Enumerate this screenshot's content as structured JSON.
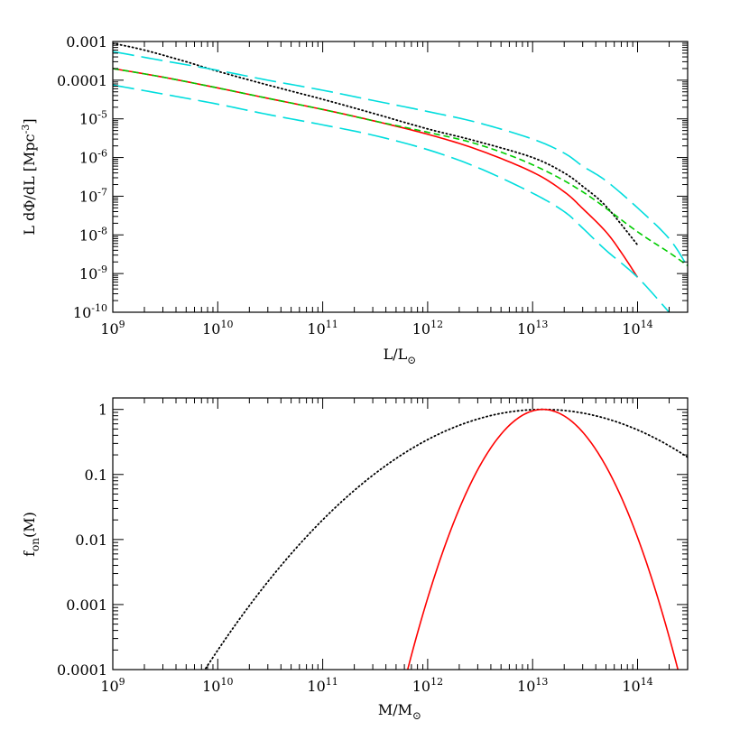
{
  "chart_data": [
    {
      "type": "line",
      "xlabel": "L/L⊙",
      "ylabel": "L dΦ/dL [Mpc⁻³]",
      "x_scale": "log",
      "y_scale": "log",
      "xlim": [
        1000000000.0,
        300000000000000.0
      ],
      "ylim": [
        1e-10,
        0.001
      ],
      "x_ticks": [
        {
          "value": 1000000000.0,
          "base": "10",
          "exp": "9"
        },
        {
          "value": 10000000000.0,
          "base": "10",
          "exp": "10"
        },
        {
          "value": 100000000000.0,
          "base": "10",
          "exp": "11"
        },
        {
          "value": 1000000000000.0,
          "base": "10",
          "exp": "12"
        },
        {
          "value": 10000000000000.0,
          "base": "10",
          "exp": "13"
        },
        {
          "value": 100000000000000.0,
          "base": "10",
          "exp": "14"
        }
      ],
      "y_ticks": [
        {
          "value": 0.001,
          "text": "0.001",
          "base": "",
          "exp": ""
        },
        {
          "value": 0.0001,
          "text": "0.0001",
          "base": "",
          "exp": ""
        },
        {
          "value": 1e-05,
          "text": "",
          "base": "10",
          "exp": "-5"
        },
        {
          "value": 1e-06,
          "text": "",
          "base": "10",
          "exp": "-6"
        },
        {
          "value": 1e-07,
          "text": "",
          "base": "10",
          "exp": "-7"
        },
        {
          "value": 1e-08,
          "text": "",
          "base": "10",
          "exp": "-8"
        },
        {
          "value": 1e-09,
          "text": "",
          "base": "10",
          "exp": "-9"
        },
        {
          "value": 1e-10,
          "text": "",
          "base": "10",
          "exp": "-10"
        }
      ],
      "series": [
        {
          "style": "dotted",
          "color": "#000000",
          "x": [
            1000000000.0,
            2000000000.0,
            5000000000.0,
            10000000000.0,
            30000000000.0,
            100000000000.0,
            300000000000.0,
            1000000000000.0,
            3000000000000.0,
            10000000000000.0,
            20000000000000.0,
            30000000000000.0,
            50000000000000.0,
            100000000000000.0
          ],
          "y": [
            0.0009,
            0.0006,
            0.0003,
            0.00017,
            7.5e-05,
            3.2e-05,
            1.4e-05,
            5.5e-06,
            2.6e-06,
            1e-06,
            4e-07,
            1.8e-07,
            5.5e-08,
            5.5e-09
          ]
        },
        {
          "style": "solid",
          "color": "#ff0000",
          "x": [
            1000000000.0,
            3000000000.0,
            10000000000.0,
            30000000000.0,
            100000000000.0,
            300000000000.0,
            1000000000000.0,
            3000000000000.0,
            10000000000000.0,
            20000000000000.0,
            30000000000000.0,
            50000000000000.0,
            70000000000000.0,
            100000000000000.0
          ],
          "y": [
            0.0002,
            0.00012,
            6.3e-05,
            3.4e-05,
            1.75e-05,
            9e-06,
            4e-06,
            1.6e-06,
            4.2e-07,
            1.3e-07,
            4.8e-08,
            1.2e-08,
            3.5e-09,
            8e-10
          ]
        },
        {
          "style": "dashed",
          "color": "#00cc00",
          "x": [
            1000000000.0,
            3000000000.0,
            10000000000.0,
            30000000000.0,
            100000000000.0,
            300000000000.0,
            1000000000000.0,
            3000000000000.0,
            10000000000000.0,
            30000000000000.0,
            100000000000000.0,
            200000000000000.0,
            300000000000000.0
          ],
          "y": [
            0.0002,
            0.00012,
            6.3e-05,
            3.4e-05,
            1.75e-05,
            9e-06,
            4.5e-06,
            2.2e-06,
            6.5e-07,
            1.3e-07,
            1.2e-08,
            3.5e-09,
            1.6e-09
          ]
        },
        {
          "style": "longdash",
          "color": "#00dddd",
          "x": [
            1000000000.0,
            3000000000.0,
            10000000000.0,
            30000000000.0,
            100000000000.0,
            300000000000.0,
            1000000000000.0,
            3000000000000.0,
            10000000000000.0,
            20000000000000.0,
            30000000000000.0,
            50000000000000.0,
            100000000000000.0,
            200000000000000.0,
            300000000000000.0
          ],
          "y": [
            0.00055,
            0.00032,
            0.00018,
            0.0001,
            5.5e-05,
            3e-05,
            1.55e-05,
            8e-06,
            3e-06,
            1.3e-06,
            6e-07,
            2.5e-07,
            5e-08,
            8e-09,
            1.5e-09
          ]
        },
        {
          "style": "longdash",
          "color": "#00dddd",
          "x": [
            1000000000.0,
            3000000000.0,
            10000000000.0,
            30000000000.0,
            100000000000.0,
            300000000000.0,
            1000000000000.0,
            3000000000000.0,
            10000000000000.0,
            20000000000000.0,
            30000000000000.0,
            50000000000000.0,
            100000000000000.0,
            200000000000000.0
          ],
          "y": [
            7.5e-05,
            4.4e-05,
            2.4e-05,
            1.3e-05,
            7e-06,
            3.8e-06,
            1.6e-06,
            5.5e-07,
            1.2e-07,
            4e-08,
            1.5e-08,
            4e-09,
            8e-10,
            1e-10
          ]
        }
      ]
    },
    {
      "type": "line",
      "xlabel": "M/M⊙",
      "ylabel": "fon(M)",
      "x_scale": "log",
      "y_scale": "log",
      "xlim": [
        1000000000.0,
        300000000000000.0
      ],
      "ylim": [
        0.0001,
        1.5
      ],
      "x_ticks": [
        {
          "value": 1000000000.0,
          "base": "10",
          "exp": "9"
        },
        {
          "value": 10000000000.0,
          "base": "10",
          "exp": "10"
        },
        {
          "value": 100000000000.0,
          "base": "10",
          "exp": "11"
        },
        {
          "value": 1000000000000.0,
          "base": "10",
          "exp": "12"
        },
        {
          "value": 10000000000000.0,
          "base": "10",
          "exp": "13"
        },
        {
          "value": 100000000000000.0,
          "base": "10",
          "exp": "14"
        }
      ],
      "y_ticks": [
        {
          "value": 1,
          "text": "1"
        },
        {
          "value": 0.1,
          "text": "0.1"
        },
        {
          "value": 0.01,
          "text": "0.01"
        },
        {
          "value": 0.001,
          "text": "0.001"
        },
        {
          "value": 0.0001,
          "text": "0.0001"
        }
      ],
      "series": [
        {
          "style": "dotted",
          "color": "#000000",
          "kind": "lognormal",
          "peak_x": 12500000000000.0,
          "peak_y": 1.0,
          "sigma_dex": 0.75,
          "x_from": 5800000000.0,
          "x_to": 300000000000000.0
        },
        {
          "style": "solid",
          "color": "#ff0000",
          "kind": "lognormal",
          "peak_x": 12500000000000.0,
          "peak_y": 1.0,
          "sigma_dex": 0.3,
          "x_from": 520000000000.0,
          "x_to": 300000000000000.0
        }
      ]
    }
  ]
}
